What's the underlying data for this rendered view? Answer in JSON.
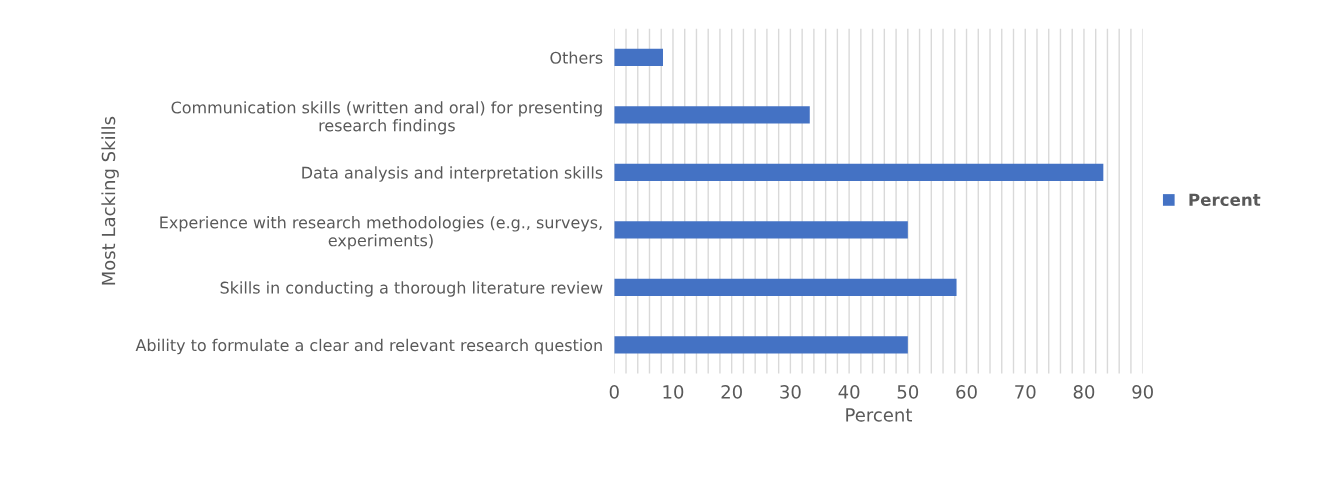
{
  "chart_data": {
    "type": "bar",
    "orientation": "horizontal",
    "xlabel": "Percent",
    "ylabel": "Most Lacking Skills",
    "categories": [
      "Others",
      "Communication skills (written and oral) for presenting\nresearch findings",
      "Data analysis and interpretation skills",
      "Experience with research methodologies (e.g., surveys,\nexperiments)",
      "Skills in conducting a thorough literature review",
      "Ability to formulate a clear and relevant research question"
    ],
    "series": [
      {
        "name": "Percent",
        "color": "#4472c4",
        "values": [
          8.3,
          33.3,
          83.3,
          50,
          58.3,
          50
        ]
      }
    ],
    "xlim": [
      0,
      90
    ],
    "xticks": [
      0,
      {
        "value": 2,
        "label": null
      },
      {
        "value": 4,
        "label": null
      },
      {
        "value": 6,
        "label": null
      },
      {
        "value": 8,
        "label": null
      },
      10,
      {
        "value": 12,
        "label": null
      },
      {
        "value": 14,
        "label": null
      },
      {
        "value": 16,
        "label": null
      },
      {
        "value": 18,
        "label": null
      },
      20,
      {
        "value": 22,
        "label": null
      },
      {
        "value": 24,
        "label": null
      },
      {
        "value": 26,
        "label": null
      },
      {
        "value": 28,
        "label": null
      },
      30,
      {
        "value": 32,
        "label": null
      },
      {
        "value": 34,
        "label": null
      },
      {
        "value": 36,
        "label": null
      },
      {
        "value": 38,
        "label": null
      },
      40,
      {
        "value": 42,
        "label": null
      },
      {
        "value": 44,
        "label": null
      },
      {
        "value": 46,
        "label": null
      },
      {
        "value": 48,
        "label": null
      },
      50,
      {
        "value": 52,
        "label": null
      },
      {
        "value": 54,
        "label": null
      },
      {
        "value": 56,
        "label": null
      },
      {
        "value": 58,
        "label": null
      },
      60,
      {
        "value": 62,
        "label": null
      },
      {
        "value": 64,
        "label": null
      },
      {
        "value": 66,
        "label": null
      },
      {
        "value": 68,
        "label": null
      },
      70,
      {
        "value": 72,
        "label": null
      },
      {
        "value": 74,
        "label": null
      },
      {
        "value": 76,
        "label": null
      },
      {
        "value": 78,
        "label": null
      },
      80,
      {
        "value": 82,
        "label": null
      },
      {
        "value": 84,
        "label": null
      },
      {
        "value": 86,
        "label": null
      },
      {
        "value": 88,
        "label": null
      },
      90
    ],
    "grid": "x",
    "legend": "right"
  }
}
